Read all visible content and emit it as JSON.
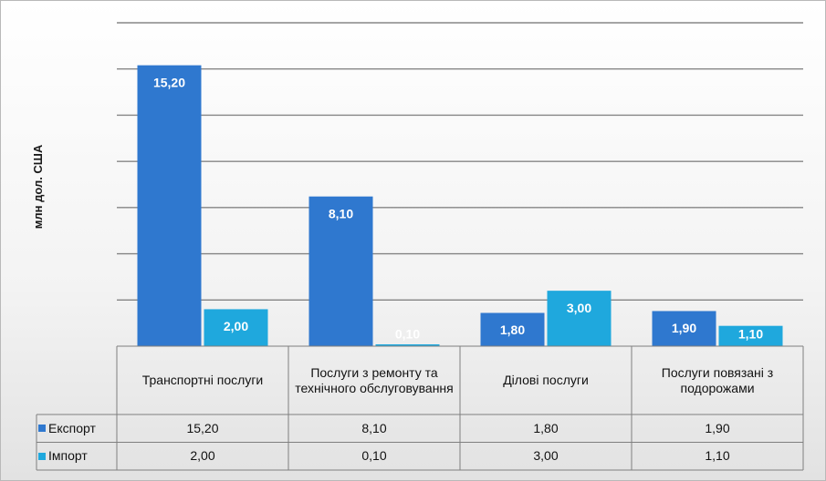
{
  "chart_data": {
    "type": "bar",
    "ylabel": "млн дол. США",
    "ylim": [
      0,
      17.5
    ],
    "grid": true,
    "categories": [
      "Транспортні послуги",
      "Послуги з ремонту та технічного обслуговування",
      "Ділові послуги",
      "Послуги повязані з подорожами"
    ],
    "series": [
      {
        "name": "Експорт",
        "color": "#2f78cf",
        "values": [
          15.2,
          8.1,
          1.8,
          1.9
        ],
        "labels": [
          "15,20",
          "8,10",
          "1,80",
          "1,90"
        ]
      },
      {
        "name": "Імпорт",
        "color": "#1fa8dd",
        "values": [
          2.0,
          0.1,
          3.0,
          1.1
        ],
        "labels": [
          "2,00",
          "0,10",
          "3,00",
          "1,10"
        ]
      }
    ],
    "table": {
      "rows": [
        {
          "series": "Експорт",
          "cells": [
            "15,20",
            "8,10",
            "1,80",
            "1,90"
          ]
        },
        {
          "series": "Імпорт",
          "cells": [
            "2,00",
            "0,10",
            "3,00",
            "1,10"
          ]
        }
      ]
    }
  }
}
